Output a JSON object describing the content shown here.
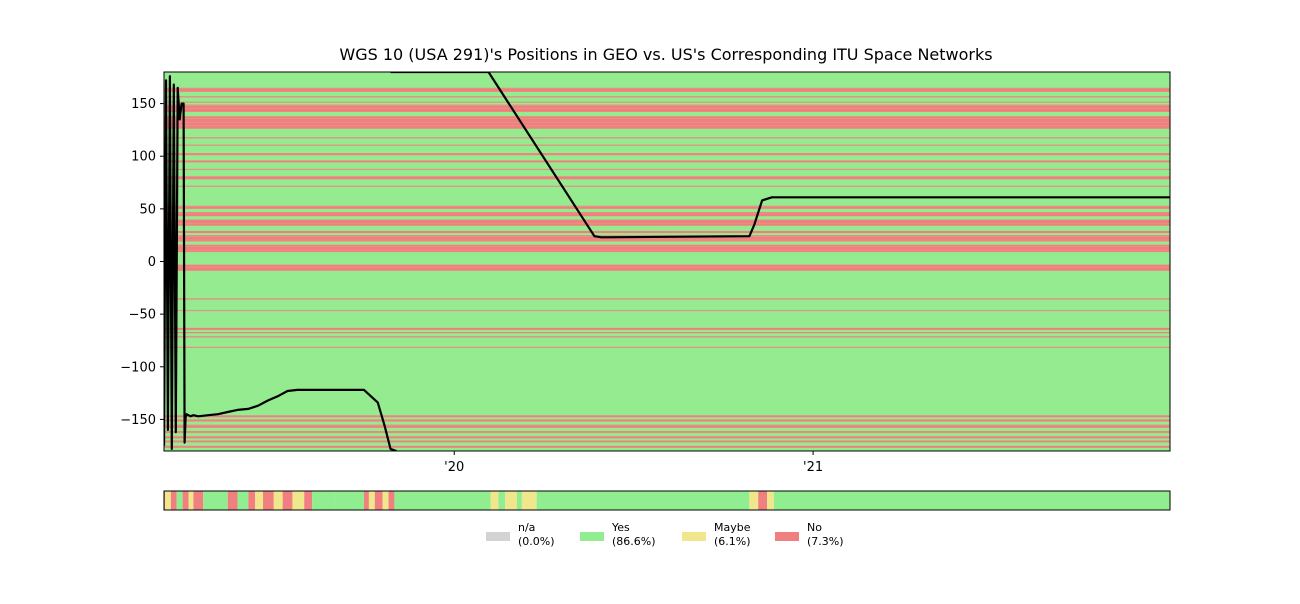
{
  "chart_data": {
    "type": "line",
    "title": "WGS 10 (USA 291)'s Positions in GEO vs. US's Corresponding ITU Space Networks",
    "xlabel": "",
    "ylabel": "",
    "x_range": [
      "2019-03-11",
      "2021-12-31"
    ],
    "x_ticks": [
      {
        "date": "2020-01-01",
        "label": "'20"
      },
      {
        "date": "2021-01-01",
        "label": "'21"
      }
    ],
    "ylim": [
      -180,
      180
    ],
    "y_ticks": [
      {
        "value": 150,
        "label": "150"
      },
      {
        "value": 100,
        "label": "100"
      },
      {
        "value": 50,
        "label": "50"
      },
      {
        "value": 0,
        "label": "0"
      },
      {
        "value": -50,
        "label": "−50"
      },
      {
        "value": -100,
        "label": "−100"
      },
      {
        "value": -150,
        "label": "−150"
      }
    ],
    "grid": false,
    "colors": {
      "na": "#d3d3d3",
      "yes": "#90ee90",
      "maybe": "#f0e68c",
      "no": "#f08080",
      "line": "#000000"
    },
    "background_band": "yes",
    "network_bands": [
      {
        "status": "no",
        "y0": 161,
        "y1": 165
      },
      {
        "status": "no",
        "y0": 156,
        "y1": 157
      },
      {
        "status": "no",
        "y0": 151,
        "y1": 152
      },
      {
        "status": "no",
        "y0": 142,
        "y1": 149
      },
      {
        "status": "no",
        "y0": 126,
        "y1": 138
      },
      {
        "status": "no",
        "y0": 117,
        "y1": 118
      },
      {
        "status": "no",
        "y0": 110,
        "y1": 111
      },
      {
        "status": "no",
        "y0": 101,
        "y1": 103
      },
      {
        "status": "no",
        "y0": 94,
        "y1": 96
      },
      {
        "status": "no",
        "y0": 87,
        "y1": 88
      },
      {
        "status": "no",
        "y0": 78,
        "y1": 81
      },
      {
        "status": "no",
        "y0": 71,
        "y1": 72
      },
      {
        "status": "no",
        "y0": 50,
        "y1": 53
      },
      {
        "status": "no",
        "y0": 43,
        "y1": 47
      },
      {
        "status": "no",
        "y0": 34,
        "y1": 40
      },
      {
        "status": "no",
        "y0": 27,
        "y1": 29
      },
      {
        "status": "no",
        "y0": 19,
        "y1": 25
      },
      {
        "status": "no",
        "y0": 9,
        "y1": 16
      },
      {
        "status": "no",
        "y0": -9,
        "y1": -3
      },
      {
        "status": "no",
        "y0": -36,
        "y1": -35
      },
      {
        "status": "no",
        "y0": -47,
        "y1": -46
      },
      {
        "status": "no",
        "y0": -63,
        "y1": -65
      },
      {
        "status": "no",
        "y0": -67,
        "y1": -68
      },
      {
        "status": "no",
        "y0": -71,
        "y1": -72
      },
      {
        "status": "no",
        "y0": -81,
        "y1": -82
      },
      {
        "status": "no",
        "y0": -148,
        "y1": -146
      },
      {
        "status": "no",
        "y0": -152,
        "y1": -150
      },
      {
        "status": "no",
        "y0": -158,
        "y1": -155
      },
      {
        "status": "no",
        "y0": -163,
        "y1": -161
      },
      {
        "status": "no",
        "y0": -168,
        "y1": -166
      },
      {
        "status": "no",
        "y0": -172,
        "y1": -170
      },
      {
        "status": "no",
        "y0": -177,
        "y1": -175
      }
    ],
    "series": [
      {
        "x": [
          "2019-03-11",
          "2019-03-13",
          "2019-03-15",
          "2019-03-17",
          "2019-03-19",
          "2019-03-21",
          "2019-03-23",
          "2019-03-25",
          "2019-03-27",
          "2019-03-29",
          "2019-03-31",
          "2019-04-01",
          "2019-04-02",
          "2019-04-03",
          "2019-04-05",
          "2019-04-07",
          "2019-04-10",
          "2019-04-15",
          "2019-04-25",
          "2019-05-05",
          "2019-05-15",
          "2019-05-25",
          "2019-06-05",
          "2019-06-15",
          "2019-06-25",
          "2019-07-05",
          "2019-07-15",
          "2019-07-25",
          "2019-08-05",
          "2019-08-15",
          "2019-09-01",
          "2019-10-01",
          "2019-10-15",
          "2019-10-22",
          "2019-10-28",
          "2019-11-03"
        ],
        "y": [
          -175,
          172,
          -160,
          176,
          -178,
          168,
          -162,
          165,
          135,
          150,
          150,
          -172,
          -148,
          -145,
          -146,
          -147,
          -146,
          -147,
          -146,
          -145,
          -143,
          -141,
          -140,
          -137,
          -132,
          -128,
          -123,
          -122,
          -122,
          -122,
          -122,
          -122,
          -134,
          -156,
          -178,
          -180
        ]
      },
      {
        "x": [
          "2019-10-28",
          "2020-02-05",
          "2020-05-23",
          "2020-05-30",
          "2020-10-28",
          "2020-11-02",
          "2020-11-10",
          "2020-11-20",
          "2021-12-31"
        ],
        "y": [
          180,
          180,
          24,
          23,
          24,
          35,
          58,
          61,
          61
        ]
      }
    ],
    "status_strip": [
      {
        "from": "2019-03-11",
        "to": "2019-03-12",
        "status": "no"
      },
      {
        "from": "2019-03-12",
        "to": "2019-03-18",
        "status": "maybe"
      },
      {
        "from": "2019-03-18",
        "to": "2019-03-24",
        "status": "no"
      },
      {
        "from": "2019-03-24",
        "to": "2019-03-30",
        "status": "yes"
      },
      {
        "from": "2019-03-30",
        "to": "2019-04-05",
        "status": "no"
      },
      {
        "from": "2019-04-05",
        "to": "2019-04-10",
        "status": "maybe"
      },
      {
        "from": "2019-04-10",
        "to": "2019-04-20",
        "status": "no"
      },
      {
        "from": "2019-04-20",
        "to": "2019-05-15",
        "status": "yes"
      },
      {
        "from": "2019-05-15",
        "to": "2019-05-25",
        "status": "no"
      },
      {
        "from": "2019-05-25",
        "to": "2019-06-05",
        "status": "yes"
      },
      {
        "from": "2019-06-05",
        "to": "2019-06-12",
        "status": "no"
      },
      {
        "from": "2019-06-12",
        "to": "2019-06-20",
        "status": "maybe"
      },
      {
        "from": "2019-06-20",
        "to": "2019-07-01",
        "status": "no"
      },
      {
        "from": "2019-07-01",
        "to": "2019-07-10",
        "status": "maybe"
      },
      {
        "from": "2019-07-10",
        "to": "2019-07-20",
        "status": "no"
      },
      {
        "from": "2019-07-20",
        "to": "2019-08-01",
        "status": "maybe"
      },
      {
        "from": "2019-08-01",
        "to": "2019-08-09",
        "status": "no"
      },
      {
        "from": "2019-08-09",
        "to": "2019-09-01",
        "status": "yes"
      },
      {
        "from": "2019-09-01",
        "to": "2019-10-01",
        "status": "yes"
      },
      {
        "from": "2019-10-01",
        "to": "2019-10-06",
        "status": "no"
      },
      {
        "from": "2019-10-06",
        "to": "2019-10-12",
        "status": "maybe"
      },
      {
        "from": "2019-10-12",
        "to": "2019-10-20",
        "status": "no"
      },
      {
        "from": "2019-10-20",
        "to": "2019-10-26",
        "status": "maybe"
      },
      {
        "from": "2019-10-26",
        "to": "2019-11-01",
        "status": "no"
      },
      {
        "from": "2019-11-01",
        "to": "2020-02-07",
        "status": "yes"
      },
      {
        "from": "2020-02-07",
        "to": "2020-02-15",
        "status": "maybe"
      },
      {
        "from": "2020-02-15",
        "to": "2020-02-22",
        "status": "yes"
      },
      {
        "from": "2020-02-22",
        "to": "2020-03-05",
        "status": "maybe"
      },
      {
        "from": "2020-03-05",
        "to": "2020-03-10",
        "status": "yes"
      },
      {
        "from": "2020-03-10",
        "to": "2020-03-25",
        "status": "maybe"
      },
      {
        "from": "2020-03-25",
        "to": "2020-10-28",
        "status": "yes"
      },
      {
        "from": "2020-10-28",
        "to": "2020-11-06",
        "status": "maybe"
      },
      {
        "from": "2020-11-06",
        "to": "2020-11-15",
        "status": "no"
      },
      {
        "from": "2020-11-15",
        "to": "2020-11-22",
        "status": "maybe"
      },
      {
        "from": "2020-11-22",
        "to": "2021-12-31",
        "status": "yes"
      }
    ],
    "legend": {
      "placement": "bottom-center",
      "entries": [
        {
          "status": "na",
          "label": "n/a",
          "percent": "(0.0%)"
        },
        {
          "status": "yes",
          "label": "Yes",
          "percent": "(86.6%)"
        },
        {
          "status": "maybe",
          "label": "Maybe",
          "percent": "(6.1%)"
        },
        {
          "status": "no",
          "label": "No",
          "percent": "(7.3%)"
        }
      ]
    }
  }
}
